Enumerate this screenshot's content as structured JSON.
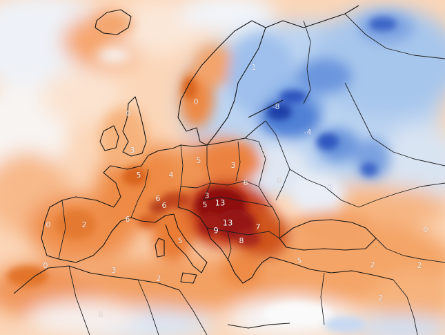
{
  "map": {
    "labels": [
      {
        "id": "poland-3",
        "text": "3",
        "kind": "normal"
      },
      {
        "id": "czech-5",
        "text": "5",
        "kind": "normal"
      },
      {
        "id": "belarus-0",
        "text": "0",
        "kind": "normal"
      },
      {
        "id": "ukraine-0",
        "text": "0",
        "kind": "normal"
      },
      {
        "id": "ukraine-6",
        "text": "6",
        "kind": "normal"
      },
      {
        "id": "hungary-13",
        "text": "13",
        "kind": "big"
      },
      {
        "id": "serbia-13",
        "text": "13",
        "kind": "big"
      },
      {
        "id": "croatia-9",
        "text": "9",
        "kind": "big"
      },
      {
        "id": "romania-7",
        "text": "7",
        "kind": "normal"
      },
      {
        "id": "bulgaria-8",
        "text": "8",
        "kind": "normal"
      },
      {
        "id": "austria-3",
        "text": "3",
        "kind": "normal"
      },
      {
        "id": "alps-5",
        "text": "5",
        "kind": "normal"
      },
      {
        "id": "switzerland-6",
        "text": "6",
        "kind": "normal"
      },
      {
        "id": "germany-4",
        "text": "4",
        "kind": "normal"
      },
      {
        "id": "france-5",
        "text": "5",
        "kind": "normal"
      },
      {
        "id": "france-6",
        "text": "6",
        "kind": "normal"
      },
      {
        "id": "spain-2",
        "text": "2",
        "kind": "normal"
      },
      {
        "id": "portugal-0",
        "text": "0",
        "kind": "normal"
      },
      {
        "id": "morocco-0",
        "text": "0",
        "kind": "normal"
      },
      {
        "id": "italy-5",
        "text": "5",
        "kind": "normal"
      },
      {
        "id": "italy-6",
        "text": "6",
        "kind": "normal"
      },
      {
        "id": "med-3",
        "text": "3",
        "kind": "normal"
      },
      {
        "id": "med-2",
        "text": "2",
        "kind": "normal"
      },
      {
        "id": "turkey-5",
        "text": "5",
        "kind": "normal"
      },
      {
        "id": "turkey-2",
        "text": "2",
        "kind": "normal"
      },
      {
        "id": "levant-2",
        "text": "2",
        "kind": "normal"
      },
      {
        "id": "caspian-0",
        "text": "0",
        "kind": "normal"
      },
      {
        "id": "east-2",
        "text": "2",
        "kind": "normal"
      },
      {
        "id": "russia-minus4",
        "text": "-4",
        "kind": "cold"
      },
      {
        "id": "russia-minus8",
        "text": "-8",
        "kind": "cold"
      },
      {
        "id": "finland-1",
        "text": "1",
        "kind": "cold"
      },
      {
        "id": "norway-0",
        "text": "0",
        "kind": "normal"
      },
      {
        "id": "uk-0",
        "text": "0",
        "kind": "normal"
      },
      {
        "id": "uk-3",
        "text": "3",
        "kind": "normal"
      },
      {
        "id": "north-africa-0",
        "text": "0",
        "kind": "normal"
      },
      {
        "id": "russia-minus2",
        "text": "-2",
        "kind": "cold"
      }
    ]
  }
}
